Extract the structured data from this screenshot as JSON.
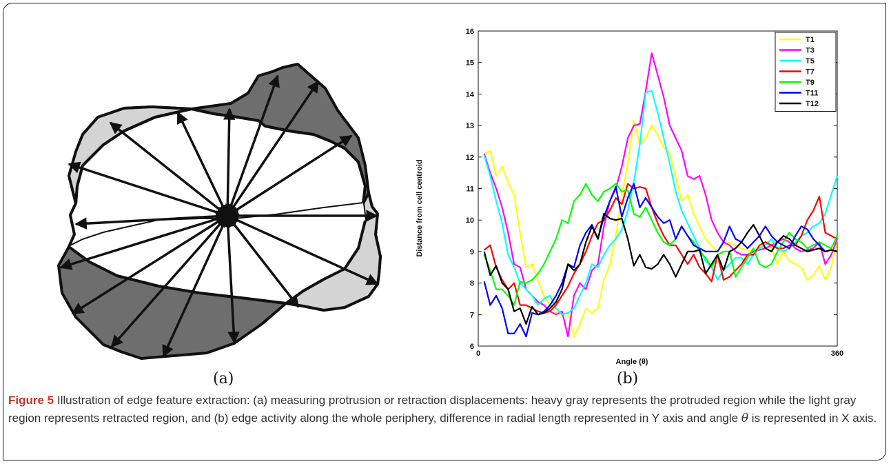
{
  "figure": {
    "label_a": "(a)",
    "label_b": "(b)",
    "caption_title": "Figure 5",
    "caption_part1": "Illustration of edge feature extraction: (a) measuring protrusion or retraction displacements: heavy gray represents the protruded region while the light gray region represents retracted region, and (b) edge activity along the whole periphery, difference in radial length represented in Y axis and angle",
    "caption_theta": "θ",
    "caption_part2": "is represented in X axis."
  },
  "colors": {
    "heavy_gray": "#6e6e6e",
    "light_gray": "#d4d4d4",
    "caption_accent": "#c0392b"
  },
  "chart_data": {
    "type": "line",
    "xlabel": "Angle (θ)",
    "ylabel": "Distance from cell centroid",
    "xlim": [
      0,
      360
    ],
    "ylim": [
      6,
      16
    ],
    "xticks": [
      "0",
      "360"
    ],
    "yticks": [
      "6",
      "7",
      "8",
      "9",
      "10",
      "11",
      "12",
      "13",
      "14",
      "15",
      "16"
    ],
    "legend_position": "top-right",
    "grid": false,
    "x": [
      6,
      12,
      18,
      24,
      30,
      36,
      42,
      48,
      54,
      60,
      66,
      72,
      78,
      84,
      90,
      96,
      102,
      108,
      114,
      120,
      126,
      132,
      138,
      144,
      150,
      156,
      162,
      168,
      174,
      180,
      186,
      192,
      198,
      204,
      210,
      216,
      222,
      228,
      234,
      240,
      246,
      252,
      258,
      264,
      270,
      276,
      282,
      288,
      294,
      300,
      306,
      312,
      318,
      324,
      330,
      336,
      342,
      348,
      354,
      360
    ],
    "series": [
      {
        "name": "T1",
        "color": "#ffff00",
        "values": [
          12.1,
          12.2,
          11.4,
          11.7,
          11.2,
          10.8,
          9.6,
          8.5,
          8.6,
          8.1,
          7.6,
          7.3,
          7.05,
          7.0,
          7.05,
          6.3,
          6.7,
          7.2,
          7.05,
          7.2,
          8.1,
          8.6,
          9.5,
          10.8,
          11.8,
          13.15,
          12.4,
          12.6,
          13.0,
          12.7,
          12.3,
          12.1,
          11.4,
          10.6,
          10.8,
          10.2,
          9.8,
          9.4,
          9.2,
          9.0,
          9.2,
          9.3,
          9.2,
          9.1,
          9.05,
          9.0,
          9.1,
          9.3,
          9.1,
          8.6,
          9.0,
          8.7,
          8.6,
          8.5,
          8.1,
          8.25,
          8.55,
          8.1,
          8.5,
          9.4
        ]
      },
      {
        "name": "T3",
        "color": "#ff00ff",
        "values": [
          12.1,
          11.5,
          11.0,
          10.4,
          9.6,
          8.6,
          8.5,
          7.8,
          7.6,
          7.4,
          7.3,
          7.1,
          7.0,
          7.1,
          6.3,
          7.6,
          8.0,
          7.8,
          8.4,
          8.6,
          9.8,
          10.6,
          11.0,
          11.7,
          12.6,
          13.0,
          13.05,
          14.1,
          15.3,
          14.6,
          13.9,
          13.0,
          12.6,
          12.2,
          11.4,
          11.3,
          11.4,
          10.8,
          10.0,
          9.6,
          9.3,
          9.2,
          9.0,
          8.9,
          8.9,
          9.0,
          9.05,
          9.1,
          9.2,
          9.3,
          9.4,
          9.3,
          9.1,
          9.0,
          9.05,
          9.1,
          9.3,
          8.6,
          8.9,
          9.4
        ]
      },
      {
        "name": "T5",
        "color": "#00ffff",
        "values": [
          12.05,
          11.4,
          10.6,
          9.9,
          8.9,
          8.5,
          8.0,
          7.8,
          7.6,
          7.3,
          7.5,
          7.6,
          7.2,
          7.0,
          7.05,
          7.2,
          7.6,
          8.0,
          8.6,
          8.5,
          8.9,
          9.2,
          9.4,
          9.7,
          10.3,
          11.2,
          12.4,
          14.05,
          14.1,
          13.4,
          12.6,
          11.8,
          10.9,
          10.3,
          9.9,
          9.5,
          9.1,
          8.7,
          8.5,
          8.1,
          8.4,
          8.6,
          8.8,
          8.8,
          8.6,
          8.9,
          9.1,
          9.2,
          9.4,
          9.1,
          9.0,
          9.1,
          9.3,
          9.5,
          9.6,
          9.8,
          9.9,
          10.2,
          10.8,
          11.4
        ]
      },
      {
        "name": "T7",
        "color": "#ff0000",
        "values": [
          9.05,
          9.2,
          8.5,
          8.1,
          7.8,
          8.0,
          7.3,
          7.3,
          7.2,
          7.1,
          7.05,
          7.1,
          7.3,
          7.6,
          7.9,
          8.3,
          8.6,
          9.0,
          9.5,
          9.9,
          10.0,
          10.3,
          10.7,
          10.5,
          11.15,
          11.0,
          11.05,
          11.0,
          10.4,
          9.9,
          9.5,
          9.2,
          9.2,
          8.9,
          8.6,
          8.9,
          8.5,
          8.3,
          8.05,
          8.9,
          8.1,
          8.2,
          8.4,
          8.6,
          8.9,
          8.9,
          9.2,
          9.3,
          9.2,
          9.1,
          9.1,
          9.2,
          9.2,
          9.5,
          10.0,
          10.3,
          10.75,
          9.6,
          9.5,
          9.4
        ]
      },
      {
        "name": "T9",
        "color": "#00ff00",
        "values": [
          8.9,
          8.4,
          7.8,
          7.8,
          7.6,
          7.3,
          8.05,
          8.0,
          8.1,
          8.3,
          8.6,
          9.0,
          9.4,
          10.0,
          9.9,
          10.6,
          10.8,
          11.15,
          10.8,
          10.6,
          10.9,
          11.0,
          11.15,
          10.9,
          10.95,
          10.2,
          10.1,
          10.4,
          10.0,
          9.6,
          9.3,
          9.2,
          9.4,
          9.8,
          9.5,
          9.3,
          9.0,
          8.8,
          8.5,
          8.9,
          9.0,
          9.0,
          8.2,
          8.5,
          8.8,
          9.1,
          8.6,
          8.5,
          8.6,
          9.0,
          9.3,
          9.6,
          9.4,
          9.3,
          9.1,
          9.2,
          9.3,
          9.2,
          9.1,
          9.5
        ]
      },
      {
        "name": "T11",
        "color": "#0000ff",
        "values": [
          8.05,
          7.3,
          7.6,
          7.2,
          6.4,
          6.4,
          6.7,
          6.3,
          7.05,
          7.0,
          7.1,
          7.3,
          7.6,
          8.0,
          8.6,
          8.5,
          9.2,
          9.6,
          9.85,
          9.4,
          10.1,
          10.6,
          11.05,
          10.1,
          10.7,
          11.15,
          10.4,
          10.7,
          10.4,
          10.1,
          9.9,
          10.0,
          9.4,
          9.8,
          9.5,
          9.2,
          9.1,
          9.0,
          9.0,
          9.0,
          9.3,
          9.8,
          9.4,
          9.3,
          9.1,
          9.3,
          9.5,
          9.8,
          9.5,
          9.3,
          9.2,
          9.1,
          9.5,
          9.8,
          9.7,
          9.4,
          9.2,
          9.0,
          9.05,
          9.0
        ]
      },
      {
        "name": "T12",
        "color": "#000000",
        "values": [
          9.0,
          8.25,
          8.55,
          8.0,
          7.8,
          7.1,
          7.2,
          6.7,
          7.25,
          7.0,
          7.05,
          7.2,
          7.4,
          7.8,
          8.6,
          8.4,
          8.6,
          9.3,
          9.8,
          9.4,
          10.2,
          10.05,
          10.0,
          10.05,
          9.4,
          8.55,
          8.9,
          8.5,
          8.45,
          8.6,
          8.9,
          8.6,
          8.2,
          8.6,
          9.0,
          9.0,
          9.05,
          8.3,
          8.6,
          8.9,
          8.4,
          9.0,
          9.1,
          9.3,
          9.6,
          9.85,
          9.5,
          9.1,
          9.0,
          9.3,
          9.5,
          9.4,
          9.2,
          9.1,
          9.0,
          9.05,
          9.1,
          9.0,
          9.05,
          9.0
        ]
      }
    ]
  }
}
